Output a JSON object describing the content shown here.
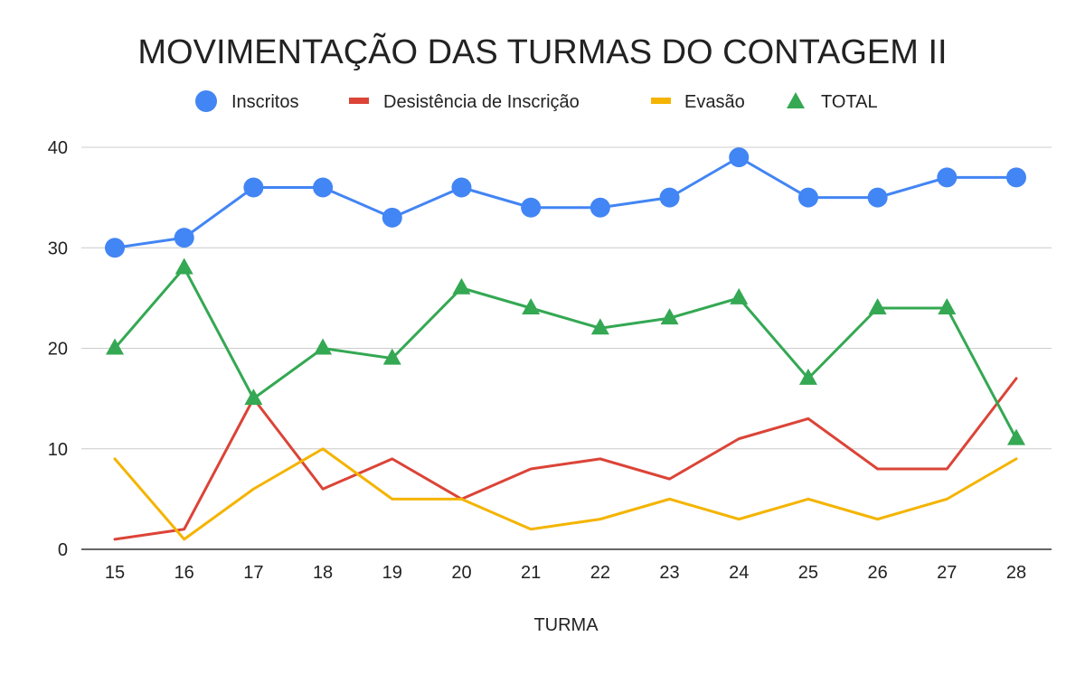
{
  "chart_data": {
    "type": "line",
    "title": "MOVIMENTAÇÃO DAS TURMAS DO CONTAGEM II",
    "xlabel": "TURMA",
    "ylabel": "",
    "ylim": [
      0,
      40
    ],
    "yticks": [
      0,
      10,
      20,
      30,
      40
    ],
    "grid": true,
    "legend_position": "top",
    "categories": [
      "15",
      "16",
      "17",
      "18",
      "19",
      "20",
      "21",
      "22",
      "23",
      "24",
      "25",
      "26",
      "27",
      "28"
    ],
    "series": [
      {
        "name": "Inscritos",
        "color": "#4285F4",
        "marker": "circle",
        "values": [
          30,
          31,
          36,
          36,
          33,
          36,
          34,
          34,
          35,
          39,
          35,
          35,
          37,
          37
        ]
      },
      {
        "name": "Desistência de Inscrição",
        "color": "#DB4437",
        "marker": "none",
        "values": [
          1,
          2,
          15,
          6,
          9,
          5,
          8,
          9,
          7,
          11,
          13,
          8,
          8,
          17
        ]
      },
      {
        "name": "Evasão",
        "color": "#F4B400",
        "marker": "none",
        "values": [
          9,
          1,
          6,
          10,
          5,
          5,
          2,
          3,
          5,
          3,
          5,
          3,
          5,
          9
        ]
      },
      {
        "name": "TOTAL",
        "color": "#34A853",
        "marker": "triangle",
        "values": [
          20,
          28,
          15,
          20,
          19,
          26,
          24,
          22,
          23,
          25,
          17,
          24,
          24,
          11
        ]
      }
    ]
  }
}
